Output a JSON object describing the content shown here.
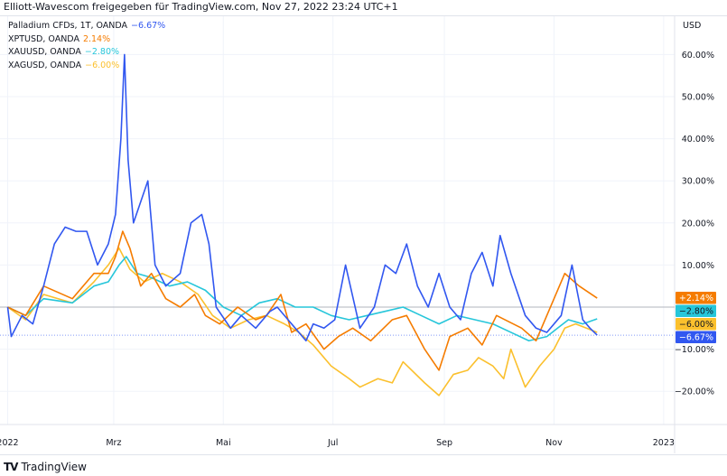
{
  "header": {
    "title": "Elliott-Wavescom freigegeben für TradingView.com, Nov 27, 2022 23:24 UTC+1"
  },
  "legend": [
    {
      "name": "Palladium CFDs, 1T, OANDA",
      "value": "−6.67%",
      "color": "#3157f0"
    },
    {
      "name": "XPTUSD, OANDA",
      "value": "2.14%",
      "color": "#f57c00"
    },
    {
      "name": "XAUUSD, OANDA",
      "value": "−2.80%",
      "color": "#26c6da"
    },
    {
      "name": "XAGUSD, OANDA",
      "value": "−6.00%",
      "color": "#fbc02d"
    }
  ],
  "price_labels": [
    {
      "text": "+2.14%",
      "value": 2.14,
      "color": "#f57c00"
    },
    {
      "text": "−2.80%",
      "value": -2.8,
      "color": "#26c6da"
    },
    {
      "text": "−6.00%",
      "value": -6.0,
      "color": "#fbc02d"
    },
    {
      "text": "−6.67%",
      "value": -6.67,
      "color": "#3157f0"
    }
  ],
  "footer": {
    "brand": "TradingView"
  },
  "chart_data": {
    "type": "line",
    "title": "",
    "xlabel": "",
    "ylabel": "USD",
    "ylim": [
      -25,
      67
    ],
    "xlim": [
      -4,
      370
    ],
    "y_ticks": [
      60,
      50,
      40,
      30,
      20,
      10,
      -10,
      -20
    ],
    "y_tick_labels": [
      "60.00%",
      "50.00%",
      "40.00%",
      "30.00%",
      "20.00%",
      "10.00%",
      "−10.00%",
      "−20.00%"
    ],
    "x_ticks": [
      0,
      59,
      120,
      181,
      243,
      304,
      365
    ],
    "x_tick_labels": [
      "2022",
      "Mrz",
      "Mai",
      "Jul",
      "Sep",
      "Nov",
      "2023"
    ],
    "series": [
      {
        "name": "Palladium CFDs, 1T, OANDA",
        "color": "#3157f0",
        "points": [
          [
            0,
            0
          ],
          [
            2,
            -7
          ],
          [
            8,
            -2
          ],
          [
            14,
            -4
          ],
          [
            20,
            5
          ],
          [
            26,
            15
          ],
          [
            32,
            19
          ],
          [
            38,
            18
          ],
          [
            44,
            18
          ],
          [
            50,
            10
          ],
          [
            56,
            15
          ],
          [
            60,
            22
          ],
          [
            63,
            40
          ],
          [
            65,
            60
          ],
          [
            67,
            35
          ],
          [
            70,
            20
          ],
          [
            74,
            25
          ],
          [
            78,
            30
          ],
          [
            82,
            10
          ],
          [
            88,
            5
          ],
          [
            96,
            8
          ],
          [
            102,
            20
          ],
          [
            108,
            22
          ],
          [
            112,
            15
          ],
          [
            116,
            0
          ],
          [
            124,
            -5
          ],
          [
            130,
            -2
          ],
          [
            138,
            -5
          ],
          [
            146,
            -1
          ],
          [
            150,
            0
          ],
          [
            156,
            -3
          ],
          [
            160,
            -5
          ],
          [
            166,
            -8
          ],
          [
            170,
            -4
          ],
          [
            176,
            -5
          ],
          [
            182,
            -3
          ],
          [
            188,
            10
          ],
          [
            196,
            -5
          ],
          [
            204,
            0
          ],
          [
            210,
            10
          ],
          [
            216,
            8
          ],
          [
            222,
            15
          ],
          [
            228,
            5
          ],
          [
            234,
            0
          ],
          [
            240,
            8
          ],
          [
            246,
            0
          ],
          [
            252,
            -3
          ],
          [
            258,
            8
          ],
          [
            264,
            13
          ],
          [
            270,
            5
          ],
          [
            274,
            17
          ],
          [
            280,
            8
          ],
          [
            288,
            -2
          ],
          [
            294,
            -5
          ],
          [
            300,
            -6
          ],
          [
            308,
            -2
          ],
          [
            314,
            10
          ],
          [
            320,
            -3
          ],
          [
            324,
            -5
          ],
          [
            328,
            -6.67
          ]
        ]
      },
      {
        "name": "XPTUSD, OANDA",
        "color": "#f57c00",
        "points": [
          [
            0,
            0
          ],
          [
            10,
            -2
          ],
          [
            20,
            5
          ],
          [
            36,
            2
          ],
          [
            48,
            8
          ],
          [
            56,
            8
          ],
          [
            60,
            12
          ],
          [
            64,
            18
          ],
          [
            68,
            14
          ],
          [
            74,
            5
          ],
          [
            80,
            8
          ],
          [
            88,
            2
          ],
          [
            96,
            0
          ],
          [
            104,
            3
          ],
          [
            110,
            -2
          ],
          [
            118,
            -4
          ],
          [
            128,
            0
          ],
          [
            138,
            -3
          ],
          [
            144,
            -2
          ],
          [
            152,
            3
          ],
          [
            158,
            -6
          ],
          [
            166,
            -4
          ],
          [
            176,
            -10
          ],
          [
            184,
            -7
          ],
          [
            192,
            -5
          ],
          [
            202,
            -8
          ],
          [
            214,
            -3
          ],
          [
            222,
            -2
          ],
          [
            232,
            -10
          ],
          [
            240,
            -15
          ],
          [
            246,
            -7
          ],
          [
            256,
            -5
          ],
          [
            264,
            -9
          ],
          [
            272,
            -2
          ],
          [
            286,
            -5
          ],
          [
            294,
            -8
          ],
          [
            304,
            2
          ],
          [
            310,
            8
          ],
          [
            318,
            5
          ],
          [
            328,
            2.14
          ]
        ]
      },
      {
        "name": "XAUUSD, OANDA",
        "color": "#26c6da",
        "points": [
          [
            0,
            0
          ],
          [
            10,
            -2
          ],
          [
            20,
            2
          ],
          [
            36,
            1
          ],
          [
            48,
            5
          ],
          [
            56,
            6
          ],
          [
            62,
            10
          ],
          [
            66,
            12
          ],
          [
            72,
            8
          ],
          [
            80,
            7
          ],
          [
            90,
            5
          ],
          [
            100,
            6
          ],
          [
            110,
            4
          ],
          [
            120,
            0
          ],
          [
            130,
            -2
          ],
          [
            140,
            1
          ],
          [
            150,
            2
          ],
          [
            160,
            0
          ],
          [
            170,
            0
          ],
          [
            180,
            -2
          ],
          [
            190,
            -3
          ],
          [
            200,
            -2
          ],
          [
            210,
            -1
          ],
          [
            220,
            0
          ],
          [
            230,
            -2
          ],
          [
            240,
            -4
          ],
          [
            250,
            -2
          ],
          [
            260,
            -3
          ],
          [
            270,
            -4
          ],
          [
            280,
            -6
          ],
          [
            290,
            -8
          ],
          [
            300,
            -7
          ],
          [
            306,
            -5
          ],
          [
            312,
            -3
          ],
          [
            320,
            -4
          ],
          [
            328,
            -2.8
          ]
        ]
      },
      {
        "name": "XAGUSD, OANDA",
        "color": "#fbc02d",
        "points": [
          [
            0,
            0
          ],
          [
            10,
            -3
          ],
          [
            20,
            3
          ],
          [
            36,
            1
          ],
          [
            48,
            6
          ],
          [
            56,
            10
          ],
          [
            62,
            14
          ],
          [
            68,
            9
          ],
          [
            76,
            6
          ],
          [
            86,
            8
          ],
          [
            96,
            6
          ],
          [
            106,
            3
          ],
          [
            114,
            -2
          ],
          [
            124,
            -5
          ],
          [
            134,
            -3
          ],
          [
            144,
            -2
          ],
          [
            154,
            -4
          ],
          [
            162,
            -6
          ],
          [
            170,
            -9
          ],
          [
            180,
            -14
          ],
          [
            190,
            -17
          ],
          [
            196,
            -19
          ],
          [
            206,
            -17
          ],
          [
            214,
            -18
          ],
          [
            220,
            -13
          ],
          [
            232,
            -18
          ],
          [
            240,
            -21
          ],
          [
            248,
            -16
          ],
          [
            256,
            -15
          ],
          [
            262,
            -12
          ],
          [
            270,
            -14
          ],
          [
            276,
            -17
          ],
          [
            280,
            -10
          ],
          [
            288,
            -19
          ],
          [
            296,
            -14
          ],
          [
            304,
            -10
          ],
          [
            310,
            -5
          ],
          [
            316,
            -4
          ],
          [
            322,
            -5
          ],
          [
            328,
            -6
          ]
        ]
      }
    ]
  }
}
